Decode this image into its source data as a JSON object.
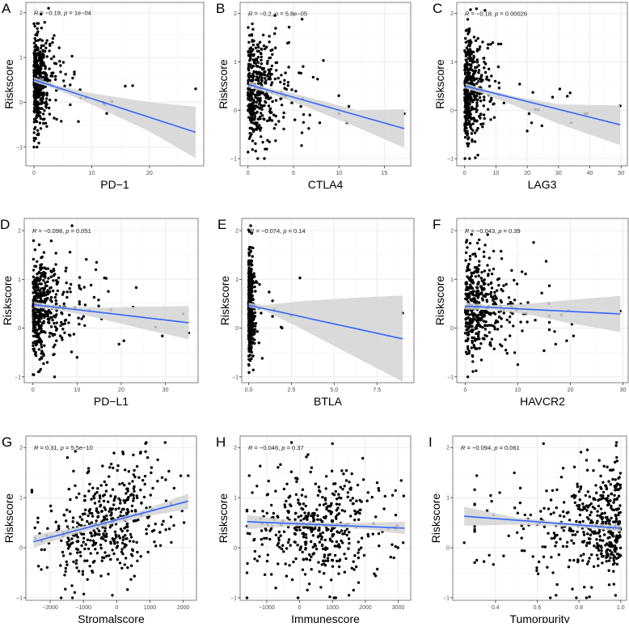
{
  "chart_data": [
    {
      "panel": "A",
      "type": "scatter",
      "xlabel": "PD−1",
      "ylabel": "Riskscore",
      "xlim": [
        -1.4,
        29.4
      ],
      "ylim": [
        -1.42,
        2.23
      ],
      "xticks": [
        0,
        10,
        20
      ],
      "xtick_labels": [
        "0",
        "10",
        "20"
      ],
      "yticks": [
        -1,
        0,
        1,
        2
      ],
      "ytick_labels": [
        "−1",
        "0",
        "1",
        "2"
      ],
      "annotation": {
        "r_label": "R",
        "r": "−0.19",
        "p_label": "p",
        "p": "1e−04"
      },
      "fit": {
        "x": [
          0,
          28
        ],
        "y": [
          0.5,
          -0.67
        ]
      },
      "ci": [
        [
          0,
          0.45,
          0.56
        ],
        [
          4,
          0.28,
          0.38
        ],
        [
          10,
          -0.05,
          0.2
        ],
        [
          20,
          -0.65,
          0.0
        ],
        [
          28,
          -1.25,
          -0.1
        ]
      ],
      "point_model": {
        "n": 420,
        "seed": 11,
        "x": {
          "type": "exp",
          "loc": 0,
          "scale": 1.1,
          "max": 7
        },
        "y": {
          "mean": 0.45,
          "sd": 0.55,
          "slope": 0,
          "min": -1,
          "max": 2.1
        }
      },
      "outliers": [
        [
          6.6,
          1.03
        ],
        [
          6.7,
          0.54
        ],
        [
          7.7,
          -0.43
        ],
        [
          8,
          0.28
        ],
        [
          8.1,
          0.1
        ],
        [
          9,
          0.1
        ],
        [
          12,
          0
        ],
        [
          12.2,
          -0.05
        ],
        [
          12.6,
          -0.25
        ],
        [
          13.5,
          0.02
        ],
        [
          15.8,
          0.36
        ],
        [
          17.1,
          0.37
        ],
        [
          28,
          0.3
        ]
      ]
    },
    {
      "panel": "B",
      "type": "scatter",
      "xlabel": "CTLA4",
      "ylabel": "Riskscore",
      "xlim": [
        -0.86,
        17.9
      ],
      "ylim": [
        -1.15,
        2.23
      ],
      "xticks": [
        0,
        5,
        10,
        15
      ],
      "xtick_labels": [
        "0",
        "5",
        "10",
        "15"
      ],
      "yticks": [
        -1,
        0,
        1,
        2
      ],
      "ytick_labels": [
        "−1",
        "0",
        "1",
        "2"
      ],
      "annotation": {
        "r_label": "R",
        "r": "−0.2",
        "p_label": "p",
        "p": "5.8e−05"
      },
      "fit": {
        "x": [
          0.1,
          17.2
        ],
        "y": [
          0.53,
          -0.38
        ]
      },
      "ci": [
        [
          0.1,
          0.47,
          0.6
        ],
        [
          2,
          0.37,
          0.47
        ],
        [
          6,
          0.1,
          0.3
        ],
        [
          12,
          -0.35,
          0.0
        ],
        [
          17.2,
          -0.78,
          0.02
        ]
      ],
      "point_model": {
        "n": 430,
        "seed": 22,
        "x": {
          "type": "exp",
          "loc": 0,
          "scale": 1.4,
          "max": 8
        },
        "y": {
          "mean": 0.42,
          "sd": 0.55,
          "slope": 0,
          "min": -1,
          "max": 2.1
        }
      },
      "outliers": [
        [
          4.5,
          1.4
        ],
        [
          8.3,
          1.03
        ],
        [
          10,
          0.3
        ],
        [
          10,
          -0.07
        ],
        [
          10.9,
          -0.26
        ],
        [
          11.1,
          0.08
        ],
        [
          17.2,
          -0.07
        ],
        [
          7.9,
          -0.26
        ],
        [
          6.8,
          -0.1
        ],
        [
          5.9,
          -0.73
        ]
      ]
    },
    {
      "panel": "C",
      "type": "scatter",
      "xlabel": "LAG3",
      "ylabel": "Riskscore",
      "xlim": [
        -2.5,
        52
      ],
      "ylim": [
        -1.15,
        2.23
      ],
      "xticks": [
        0,
        10,
        20,
        30,
        40,
        50
      ],
      "xtick_labels": [
        "0",
        "10",
        "20",
        "30",
        "40",
        "50"
      ],
      "yticks": [
        -1,
        0,
        1,
        2
      ],
      "ytick_labels": [
        "−1",
        "0",
        "1",
        "2"
      ],
      "annotation": {
        "r_label": "R",
        "r": "−0.18",
        "p_label": "p",
        "p": "0.00026"
      },
      "fit": {
        "x": [
          0.3,
          49.7
        ],
        "y": [
          0.5,
          -0.3
        ]
      },
      "ci": [
        [
          0.3,
          0.45,
          0.56
        ],
        [
          5,
          0.36,
          0.46
        ],
        [
          15,
          0.12,
          0.3
        ],
        [
          30,
          -0.28,
          0.12
        ],
        [
          49.7,
          -0.72,
          0.1
        ]
      ],
      "point_model": {
        "n": 430,
        "seed": 33,
        "x": {
          "type": "exp",
          "loc": 0,
          "scale": 2.6,
          "max": 18
        },
        "y": {
          "mean": 0.45,
          "sd": 0.55,
          "slope": 0,
          "min": -1,
          "max": 2.1
        }
      },
      "outliers": [
        [
          9,
          1.4
        ],
        [
          10.8,
          1.37
        ],
        [
          11.6,
          1.37
        ],
        [
          17.6,
          0.54
        ],
        [
          20,
          -0.43
        ],
        [
          20.6,
          -0.07
        ],
        [
          21.4,
          -0.26
        ],
        [
          21.8,
          0.37
        ],
        [
          22.6,
          0.02
        ],
        [
          23.6,
          0.01
        ],
        [
          24.7,
          -0.32
        ],
        [
          28.1,
          0.27
        ],
        [
          30.4,
          0.44
        ],
        [
          32.8,
          0.29
        ],
        [
          33.7,
          0.36
        ],
        [
          34,
          -0.26
        ],
        [
          38.5,
          -0.07
        ],
        [
          39.2,
          -0.07
        ],
        [
          49.7,
          0.09
        ]
      ]
    },
    {
      "panel": "D",
      "type": "scatter",
      "xlabel": "PD−L1",
      "ylabel": "Riskscore",
      "xlim": [
        -1.96,
        37.4
      ],
      "ylim": [
        -1.12,
        2.25
      ],
      "xticks": [
        0,
        10,
        20,
        30
      ],
      "xtick_labels": [
        "0",
        "10",
        "20",
        "30"
      ],
      "yticks": [
        -1,
        0,
        1,
        2
      ],
      "ytick_labels": [
        "−1",
        "0",
        "1",
        "2"
      ],
      "annotation": {
        "r_label": "R",
        "r": "−0.098",
        "p_label": "p",
        "p": "0.051"
      },
      "fit": {
        "x": [
          0.3,
          35.3
        ],
        "y": [
          0.48,
          0.11
        ]
      },
      "ci": [
        [
          0.3,
          0.42,
          0.54
        ],
        [
          6,
          0.37,
          0.45
        ],
        [
          15,
          0.2,
          0.42
        ],
        [
          25,
          -0.02,
          0.44
        ],
        [
          35.3,
          -0.23,
          0.45
        ]
      ],
      "point_model": {
        "n": 430,
        "seed": 44,
        "x": {
          "type": "exp",
          "loc": 0,
          "scale": 3.2,
          "max": 20
        },
        "y": {
          "mean": 0.45,
          "sd": 0.55,
          "slope": 0,
          "min": -1,
          "max": 2.1
        }
      },
      "outliers": [
        [
          12.1,
          1.41
        ],
        [
          16.2,
          1.03
        ],
        [
          16.6,
          1.02
        ],
        [
          23.4,
          0.83
        ],
        [
          22.7,
          0.43
        ],
        [
          27.8,
          0.02
        ],
        [
          29.3,
          -0.16
        ],
        [
          34,
          0.29
        ],
        [
          35.3,
          -0.1
        ],
        [
          20.6,
          -0.26
        ],
        [
          19.5,
          -0.33
        ],
        [
          10,
          -0.6
        ]
      ]
    },
    {
      "panel": "E",
      "type": "scatter",
      "xlabel": "BTLA",
      "ylabel": "Riskscore",
      "xlim": [
        -0.4,
        9.66
      ],
      "ylim": [
        -1.12,
        2.25
      ],
      "xticks": [
        0,
        2.5,
        5,
        7.5
      ],
      "xtick_labels": [
        "0.0",
        "2.5",
        "5.0",
        "7.5"
      ],
      "yticks": [
        -1,
        0,
        1,
        2
      ],
      "ytick_labels": [
        "−1",
        "0",
        "1",
        "2"
      ],
      "annotation": {
        "r_label": "R",
        "r": "−0.074",
        "p_label": "p",
        "p": "0.14"
      },
      "fit": {
        "x": [
          0,
          9
        ],
        "y": [
          0.47,
          -0.22
        ]
      },
      "ci": [
        [
          0,
          0.43,
          0.52
        ],
        [
          1,
          0.35,
          0.47
        ],
        [
          3,
          0.0,
          0.55
        ],
        [
          6,
          -0.55,
          0.62
        ],
        [
          9,
          -1.1,
          0.67
        ]
      ],
      "point_model": {
        "n": 430,
        "seed": 55,
        "x": {
          "type": "exp",
          "loc": 0,
          "scale": 0.12,
          "max": 1.2
        },
        "y": {
          "mean": 0.45,
          "sd": 0.55,
          "slope": 0,
          "min": -1,
          "max": 2.1
        }
      },
      "outliers": [
        [
          3,
          1.03
        ],
        [
          1.2,
          0.74
        ],
        [
          1.4,
          0.56
        ],
        [
          1.5,
          0.38
        ],
        [
          1.4,
          0.24
        ],
        [
          1.9,
          0.02
        ],
        [
          1.95,
          0
        ],
        [
          2.5,
          0.26
        ],
        [
          0.8,
          -0.62
        ],
        [
          9,
          0.31
        ]
      ]
    },
    {
      "panel": "F",
      "type": "scatter",
      "xlabel": "HAVCR2",
      "ylabel": "Riskscore",
      "xlim": [
        -1.6,
        31
      ],
      "ylim": [
        -1.12,
        2.25
      ],
      "xticks": [
        0,
        10,
        20,
        30
      ],
      "xtick_labels": [
        "0",
        "10",
        "20",
        "30"
      ],
      "yticks": [
        -1,
        0,
        1,
        2
      ],
      "ytick_labels": [
        "−1",
        "0",
        "1",
        "2"
      ],
      "annotation": {
        "r_label": "R",
        "r": "−0.043",
        "p_label": "p",
        "p": "0.39"
      },
      "fit": {
        "x": [
          0,
          29.5
        ],
        "y": [
          0.45,
          0.29
        ]
      },
      "ci": [
        [
          0,
          0.38,
          0.52
        ],
        [
          5,
          0.37,
          0.47
        ],
        [
          12,
          0.28,
          0.5
        ],
        [
          20,
          0.1,
          0.58
        ],
        [
          29.5,
          -0.08,
          0.66
        ]
      ],
      "point_model": {
        "n": 430,
        "seed": 66,
        "x": {
          "type": "exp",
          "loc": 0,
          "scale": 3.5,
          "max": 16
        },
        "y": {
          "mean": 0.45,
          "sd": 0.55,
          "slope": 0,
          "min": -1,
          "max": 2.1
        }
      },
      "outliers": [
        [
          15.4,
          1.37
        ],
        [
          17,
          -0.07
        ],
        [
          17.2,
          -0.33
        ],
        [
          18.3,
          0.27
        ],
        [
          19.3,
          -0.26
        ],
        [
          19.6,
          0.36
        ],
        [
          20.3,
          0.08
        ],
        [
          20.6,
          -0.16
        ],
        [
          29.5,
          0.35
        ],
        [
          10,
          -0.75
        ]
      ]
    },
    {
      "panel": "G",
      "type": "scatter",
      "xlabel": "Stromalscore",
      "ylabel": "Riskscore",
      "xlim": [
        -2729,
        2397
      ],
      "ylim": [
        -1.05,
        2.23
      ],
      "xticks": [
        -2000,
        -1000,
        0,
        1000,
        2000
      ],
      "xtick_labels": [
        "−2000",
        "−1000",
        "0",
        "1000",
        "2000"
      ],
      "yticks": [
        -1,
        0,
        1,
        2
      ],
      "ytick_labels": [
        "−1",
        "0",
        "1",
        "2"
      ],
      "annotation": {
        "r_label": "R",
        "r": "0.31",
        "p_label": "p",
        "p": "5.5e−10"
      },
      "fit": {
        "x": [
          -2500,
          2150
        ],
        "y": [
          0.12,
          0.93
        ]
      },
      "ci": [
        [
          -2500,
          0.0,
          0.25
        ],
        [
          -1200,
          0.28,
          0.41
        ],
        [
          -200,
          0.46,
          0.54
        ],
        [
          1000,
          0.64,
          0.8
        ],
        [
          2150,
          0.77,
          1.08
        ]
      ],
      "point_model": {
        "n": 440,
        "seed": 77,
        "x": {
          "type": "normal",
          "mean": -350,
          "sd": 950,
          "min": -2550,
          "max": 2150
        },
        "y": {
          "mean": 0.55,
          "sd": 0.5,
          "slope": 0.00017,
          "min": -1,
          "max": 2.1
        }
      },
      "outliers": [
        [
          870,
          2.08
        ],
        [
          870,
          1.92
        ],
        [
          930,
          1.8
        ],
        [
          -1480,
          1.8
        ],
        [
          -80,
          1.89
        ],
        [
          2150,
          1.44
        ],
        [
          -1330,
          -1
        ],
        [
          -130,
          -0.95
        ]
      ]
    },
    {
      "panel": "H",
      "type": "scatter",
      "xlabel": "Immunescore",
      "ylabel": "Riskscore",
      "xlim": [
        -1809,
        3379
      ],
      "ylim": [
        -1.05,
        2.23
      ],
      "xticks": [
        -1000,
        0,
        1000,
        2000,
        3000
      ],
      "xtick_labels": [
        "−1000",
        "0",
        "1000",
        "2000",
        "3000"
      ],
      "yticks": [
        -1,
        0,
        1,
        2
      ],
      "ytick_labels": [
        "−1",
        "0",
        "1",
        "2"
      ],
      "annotation": {
        "r_label": "R",
        "r": "−0.046",
        "p_label": "p",
        "p": "0.37"
      },
      "fit": {
        "x": [
          -1600,
          3200
        ],
        "y": [
          0.52,
          0.39
        ]
      },
      "ci": [
        [
          -1600,
          0.37,
          0.66
        ],
        [
          -200,
          0.43,
          0.54
        ],
        [
          700,
          0.42,
          0.5
        ],
        [
          2000,
          0.37,
          0.5
        ],
        [
          3200,
          0.27,
          0.52
        ]
      ],
      "point_model": {
        "n": 440,
        "seed": 88,
        "x": {
          "type": "normal",
          "mean": 650,
          "sd": 1000,
          "min": -1600,
          "max": 3200
        },
        "y": {
          "mean": 0.45,
          "sd": 0.55,
          "slope": 0,
          "min": -1,
          "max": 2.1
        }
      },
      "outliers": [
        [
          1000,
          2.08
        ],
        [
          -1200,
          1.63
        ],
        [
          -1530,
          1.44
        ],
        [
          3150,
          0.1
        ],
        [
          2600,
          1.03
        ],
        [
          920,
          -0.98
        ],
        [
          1500,
          -0.95
        ]
      ]
    },
    {
      "panel": "I",
      "type": "scatter",
      "xlabel": "Tumorpurity",
      "ylabel": "Riskscore",
      "xlim": [
        0.195,
        1.028
      ],
      "ylim": [
        -1.05,
        2.23
      ],
      "xticks": [
        0.4,
        0.6,
        0.8,
        1.0
      ],
      "xtick_labels": [
        "0.4",
        "0.6",
        "0.8",
        "1.0"
      ],
      "yticks": [
        -1,
        0,
        1,
        2
      ],
      "ytick_labels": [
        "−1",
        "0",
        "1",
        "2"
      ],
      "annotation": {
        "r_label": "R",
        "r": "−0.094",
        "p_label": "p",
        "p": "0.061"
      },
      "fit": {
        "x": [
          0.25,
          1.0
        ],
        "y": [
          0.63,
          0.39
        ]
      },
      "ci": [
        [
          0.25,
          0.44,
          0.82
        ],
        [
          0.5,
          0.46,
          0.6
        ],
        [
          0.75,
          0.42,
          0.5
        ],
        [
          0.9,
          0.37,
          0.47
        ],
        [
          1.0,
          0.32,
          0.45
        ]
      ],
      "point_model": {
        "n": 440,
        "seed": 99,
        "x": {
          "type": "exp_rev",
          "loc": 1,
          "scale": 0.17,
          "min": 0.3,
          "max": 1
        },
        "y": {
          "mean": 0.45,
          "sd": 0.55,
          "slope": 0,
          "min": -1,
          "max": 2.1
        }
      },
      "outliers": [
        [
          0.25,
          0.1
        ],
        [
          0.31,
          1.44
        ],
        [
          0.31,
          -0.25
        ],
        [
          0.36,
          0.74
        ],
        [
          0.37,
          -0.15
        ],
        [
          0.42,
          1.1
        ],
        [
          0.63,
          2.08
        ],
        [
          0.69,
          -0.95
        ],
        [
          0.85,
          -0.98
        ]
      ]
    }
  ],
  "colors": {
    "point": "#000000",
    "fit_line": "#3366ff",
    "ci_band": "#d3d3d3",
    "grid": "#ebebeb",
    "frame": "#7f7f7f"
  }
}
